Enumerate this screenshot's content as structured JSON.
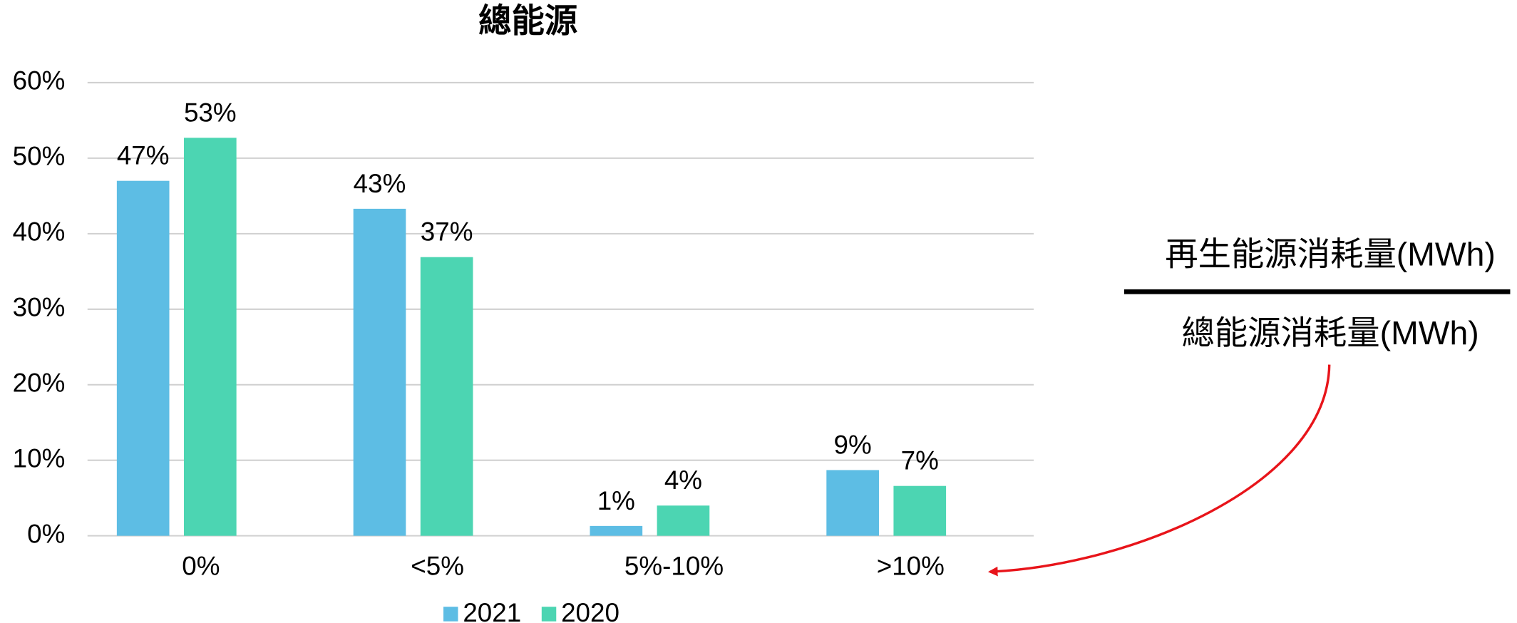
{
  "chart_data": {
    "type": "bar",
    "title": "總能源",
    "categories": [
      "0%",
      "<5%",
      "5%-10%",
      ">10%"
    ],
    "series": [
      {
        "name": "2021",
        "color": "#5dbde4",
        "values": [
          47,
          43.3,
          1.3,
          8.7
        ],
        "value_labels": [
          "47%",
          "43%",
          "1%",
          "9%"
        ]
      },
      {
        "name": "2020",
        "color": "#4cd5b2",
        "values": [
          52.7,
          36.9,
          4.0,
          6.6
        ],
        "value_labels": [
          "53%",
          "37%",
          "4%",
          "7%"
        ]
      }
    ],
    "ylim": [
      0,
      60
    ],
    "yticks": [
      {
        "value": 0,
        "label": "0%"
      },
      {
        "value": 10,
        "label": "10%"
      },
      {
        "value": 20,
        "label": "20%"
      },
      {
        "value": 30,
        "label": "30%"
      },
      {
        "value": 40,
        "label": "40%"
      },
      {
        "value": 50,
        "label": "50%"
      },
      {
        "value": 60,
        "label": "60%"
      }
    ],
    "grid": true,
    "legend": "bottom",
    "annotations": [
      "再生能源消耗量(MWh)",
      "總能源消耗量(MWh)"
    ]
  }
}
